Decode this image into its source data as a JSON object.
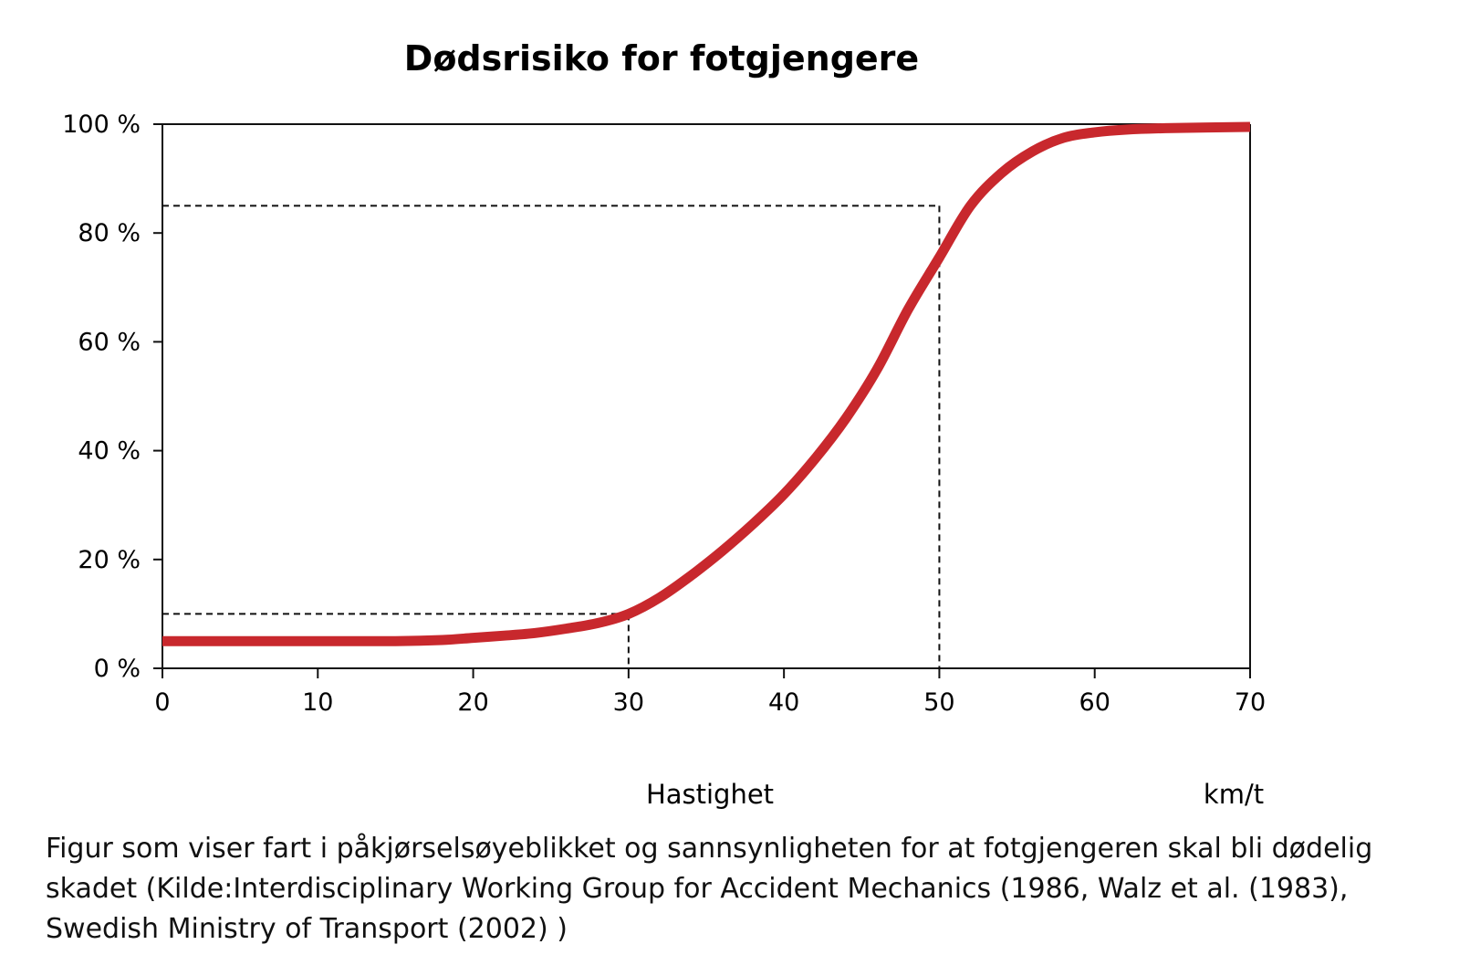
{
  "chart_data": {
    "type": "line",
    "title": "Dødsrisiko for fotgjengere",
    "xlabel": "Hastighet",
    "xunit": "km/t",
    "x_ticks": [
      "0",
      "10",
      "20",
      "30",
      "40",
      "50",
      "60",
      "70"
    ],
    "y_ticks": [
      "0 %",
      "20 %",
      "40 %",
      "60 %",
      "80 %",
      "100 %"
    ],
    "xlim": [
      0,
      70
    ],
    "ylim": [
      0,
      100
    ],
    "series": [
      {
        "name": "Dødsrisiko",
        "color": "#c8282d",
        "x": [
          0,
          5,
          10,
          15,
          18,
          20,
          22,
          24,
          26,
          28,
          30,
          32,
          34,
          36,
          38,
          40,
          42,
          44,
          46,
          48,
          50,
          52,
          54,
          56,
          58,
          60,
          62,
          65,
          70
        ],
        "y": [
          5,
          5,
          5,
          5,
          5.2,
          5.6,
          6,
          6.5,
          7.3,
          8.3,
          10,
          13,
          17,
          21.5,
          26.5,
          32,
          38.5,
          46,
          55,
          66,
          75.5,
          85,
          91,
          95,
          97.5,
          98.5,
          99,
          99.3,
          99.5
        ]
      }
    ],
    "reference_lines": [
      {
        "x": 30,
        "y": 10
      },
      {
        "x": 50,
        "y": 85
      }
    ],
    "grid": false
  },
  "caption": {
    "line1": "Figur som viser fart i påkjørselsøyeblikket og sannsynligheten for at fotgjengeren skal bli dødelig",
    "line2": "skadet (Kilde:Interdisciplinary Working Group for Accident Mechanics (1986, Walz et al. (1983),",
    "line3": "Swedish Ministry of Transport (2002) )"
  }
}
